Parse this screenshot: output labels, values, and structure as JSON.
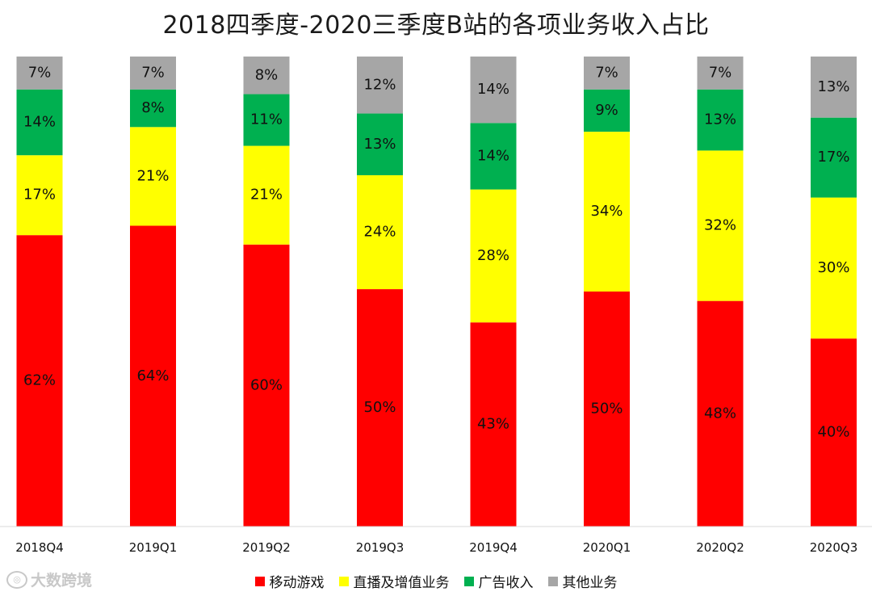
{
  "chart_data": {
    "type": "bar",
    "stacked": true,
    "normalized": true,
    "title": "2018四季度-2020三季度B站的各项业务收入占比",
    "categories": [
      "2018Q4",
      "2019Q1",
      "2019Q2",
      "2019Q3",
      "2019Q4",
      "2020Q1",
      "2020Q2",
      "2020Q3"
    ],
    "series": [
      {
        "name": "移动游戏",
        "color": "#ff0000",
        "values": [
          62,
          64,
          60,
          50,
          43,
          50,
          48,
          40
        ]
      },
      {
        "name": "直播及增值业务",
        "color": "#ffff00",
        "values": [
          17,
          21,
          21,
          24,
          28,
          34,
          32,
          30
        ]
      },
      {
        "name": "广告收入",
        "color": "#00b050",
        "values": [
          14,
          8,
          11,
          13,
          14,
          9,
          13,
          17
        ]
      },
      {
        "name": "其他业务",
        "color": "#a6a6a6",
        "values": [
          7,
          7,
          8,
          12,
          14,
          7,
          7,
          13
        ]
      }
    ],
    "value_suffix": "%",
    "legend_position": "bottom",
    "grid": false
  },
  "watermark": {
    "text": "大数跨境",
    "icon": "logo-circle-icon"
  }
}
